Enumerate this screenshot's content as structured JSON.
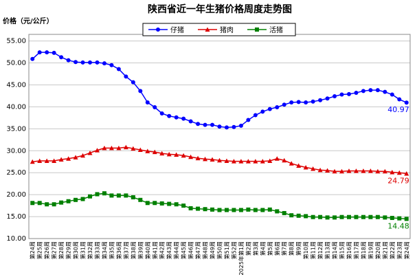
{
  "chart_data": {
    "type": "line",
    "title": "陕西省近一年生猪价格周度走势图",
    "y_label": "价格（元/公斤）",
    "categories": [
      "第24周",
      "第25周",
      "第26周",
      "第27周",
      "第28周",
      "第29周",
      "第30周",
      "第31周",
      "第32周",
      "第33周",
      "第34周",
      "第35周",
      "第36周",
      "第37周",
      "第38周",
      "第39周",
      "第40周",
      "第41周",
      "第42周",
      "第43周",
      "第44周",
      "第45周",
      "第46周",
      "第47周",
      "第48周",
      "第49周",
      "第50周",
      "第51周",
      "第52周",
      "2025年第1周",
      "第2周",
      "第3周",
      "第4周",
      "第5周",
      "第6周",
      "第7周",
      "第8周",
      "第9周",
      "第10周",
      "第11周",
      "第12周",
      "第13周",
      "第14周",
      "第15周",
      "第16周",
      "第17周",
      "第18周",
      "第19周",
      "第20周",
      "第21周",
      "第22周",
      "第23周",
      "第24周"
    ],
    "series": [
      {
        "name": "仔猪",
        "color": "#0000ff",
        "marker": "circle",
        "values": [
          50.9,
          52.4,
          52.4,
          52.3,
          51.3,
          50.6,
          50.2,
          50.1,
          50.1,
          50.1,
          49.9,
          49.5,
          48.6,
          46.9,
          45.6,
          43.6,
          41.0,
          39.9,
          38.5,
          37.9,
          37.6,
          37.3,
          36.7,
          36.1,
          35.9,
          35.9,
          35.5,
          35.3,
          35.4,
          35.7,
          37.0,
          38.1,
          38.9,
          39.5,
          39.9,
          40.5,
          41.0,
          41.1,
          41.0,
          41.2,
          41.5,
          41.9,
          42.4,
          42.8,
          42.9,
          43.2,
          43.6,
          43.8,
          43.8,
          43.4,
          42.8,
          41.7,
          40.97
        ]
      },
      {
        "name": "猪肉",
        "color": "#dd0000",
        "marker": "triangle",
        "values": [
          27.5,
          27.7,
          27.7,
          27.7,
          28.0,
          28.2,
          28.5,
          28.9,
          29.5,
          30.1,
          30.6,
          30.6,
          30.6,
          30.8,
          30.5,
          30.2,
          29.9,
          29.7,
          29.4,
          29.2,
          29.1,
          28.9,
          28.6,
          28.3,
          28.1,
          28.0,
          27.8,
          27.7,
          27.6,
          27.6,
          27.6,
          27.6,
          27.6,
          27.7,
          28.2,
          27.8,
          27.1,
          26.6,
          26.2,
          25.9,
          25.6,
          25.5,
          25.3,
          25.3,
          25.4,
          25.4,
          25.4,
          25.4,
          25.3,
          25.3,
          25.1,
          25.0,
          24.79
        ]
      },
      {
        "name": "活猪",
        "color": "#008000",
        "marker": "square",
        "values": [
          18.1,
          18.1,
          17.8,
          17.8,
          18.2,
          18.5,
          18.8,
          19.0,
          19.6,
          20.1,
          20.3,
          19.8,
          19.8,
          19.8,
          19.4,
          18.8,
          18.1,
          18.1,
          18.0,
          17.9,
          17.8,
          17.5,
          16.9,
          16.8,
          16.7,
          16.6,
          16.5,
          16.5,
          16.5,
          16.5,
          16.6,
          16.5,
          16.5,
          16.6,
          16.2,
          15.8,
          15.3,
          15.2,
          15.1,
          14.9,
          14.9,
          14.8,
          14.8,
          14.9,
          14.9,
          14.9,
          14.9,
          14.9,
          14.9,
          14.8,
          14.7,
          14.6,
          14.48
        ]
      }
    ],
    "ylim": [
      10,
      56.5
    ],
    "yticks": [
      {
        "value": 10,
        "label": "10.00"
      },
      {
        "value": 15,
        "label": "15.00"
      },
      {
        "value": 20,
        "label": "20.00"
      },
      {
        "value": 25,
        "label": "25.00"
      },
      {
        "value": 30,
        "label": "30.00"
      },
      {
        "value": 35,
        "label": "35.00"
      },
      {
        "value": 40,
        "label": "40.00"
      },
      {
        "value": 45,
        "label": "45.00"
      },
      {
        "value": 50,
        "label": "50.00"
      },
      {
        "value": 55,
        "label": "55.00"
      }
    ],
    "grid": true
  }
}
